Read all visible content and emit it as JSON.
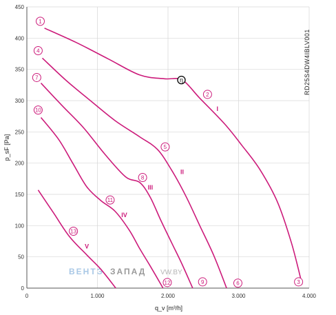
{
  "chart_data": {
    "type": "line",
    "xlabel": "q_v [m³/h]",
    "ylabel": "p_sF [Pa]",
    "model_code": "RD25S4DW4IBLV001",
    "xlim": [
      0,
      4000
    ],
    "ylim": [
      0,
      450
    ],
    "x_ticks": [
      0,
      1000,
      2000,
      3000,
      4000
    ],
    "x_tick_labels": [
      "0",
      "1.000",
      "2.000",
      "3.000",
      "4.000"
    ],
    "y_ticks": [
      0,
      50,
      100,
      150,
      200,
      250,
      300,
      350,
      400,
      450
    ],
    "y_tick_labels": [
      "0",
      "50",
      "100",
      "150",
      "200",
      "250",
      "300",
      "350",
      "400",
      "450"
    ],
    "grid": true,
    "line_color": "#cc1a7a",
    "series": [
      {
        "name": "I",
        "label_at": [
          2700,
          287
        ],
        "points": [
          [
            250,
            416
          ],
          [
            700,
            393
          ],
          [
            1150,
            367
          ],
          [
            1600,
            341
          ],
          [
            1950,
            335
          ],
          [
            2200,
            333
          ],
          [
            2450,
            304
          ],
          [
            2800,
            263
          ],
          [
            3050,
            228
          ],
          [
            3300,
            190
          ],
          [
            3550,
            138
          ],
          [
            3750,
            72
          ],
          [
            3900,
            6
          ]
        ]
      },
      {
        "name": "II",
        "label_at": [
          2200,
          186
        ],
        "points": [
          [
            220,
            368
          ],
          [
            550,
            333
          ],
          [
            900,
            300
          ],
          [
            1250,
            268
          ],
          [
            1600,
            242
          ],
          [
            1850,
            222
          ],
          [
            2050,
            189
          ],
          [
            2250,
            148
          ],
          [
            2450,
            100
          ],
          [
            2650,
            52
          ],
          [
            2830,
            0
          ]
        ]
      },
      {
        "name": "III",
        "label_at": [
          1750,
          161
        ],
        "points": [
          [
            200,
            328
          ],
          [
            500,
            292
          ],
          [
            800,
            257
          ],
          [
            1100,
            215
          ],
          [
            1400,
            178
          ],
          [
            1600,
            169
          ],
          [
            1750,
            145
          ],
          [
            1900,
            108
          ],
          [
            2050,
            73
          ],
          [
            2200,
            38
          ],
          [
            2350,
            0
          ]
        ]
      },
      {
        "name": "IV",
        "label_at": [
          1380,
          117
        ],
        "points": [
          [
            200,
            273
          ],
          [
            450,
            238
          ],
          [
            650,
            200
          ],
          [
            850,
            162
          ],
          [
            1050,
            140
          ],
          [
            1250,
            123
          ],
          [
            1450,
            93
          ],
          [
            1600,
            63
          ],
          [
            1750,
            35
          ],
          [
            1930,
            0
          ]
        ]
      },
      {
        "name": "V",
        "label_at": [
          850,
          67
        ],
        "points": [
          [
            160,
            157
          ],
          [
            380,
            120
          ],
          [
            600,
            83
          ],
          [
            850,
            53
          ],
          [
            1050,
            30
          ],
          [
            1260,
            0
          ]
        ]
      }
    ],
    "annotations": [
      {
        "label": "1",
        "at": [
          190,
          427
        ]
      },
      {
        "label": "2",
        "at": [
          2560,
          310
        ]
      },
      {
        "label": "3",
        "at": [
          3850,
          10
        ]
      },
      {
        "label": "4",
        "at": [
          160,
          380
        ]
      },
      {
        "label": "5",
        "at": [
          1960,
          226
        ]
      },
      {
        "label": "6",
        "at": [
          2990,
          8
        ]
      },
      {
        "label": "7",
        "at": [
          140,
          337
        ]
      },
      {
        "label": "8",
        "at": [
          1640,
          177
        ]
      },
      {
        "label": "9",
        "at": [
          2490,
          10
        ]
      },
      {
        "label": "10",
        "at": [
          160,
          285
        ]
      },
      {
        "label": "11",
        "at": [
          1180,
          141
        ]
      },
      {
        "label": "12",
        "at": [
          1990,
          9
        ]
      },
      {
        "label": "13",
        "at": [
          660,
          91
        ]
      }
    ],
    "operating_point": {
      "label": "η",
      "at": [
        2190,
        333
      ]
    },
    "watermark": {
      "part1": "ВЕНТЭ",
      "part2": "ЗАПАД",
      "part3": "VW.BY"
    }
  }
}
